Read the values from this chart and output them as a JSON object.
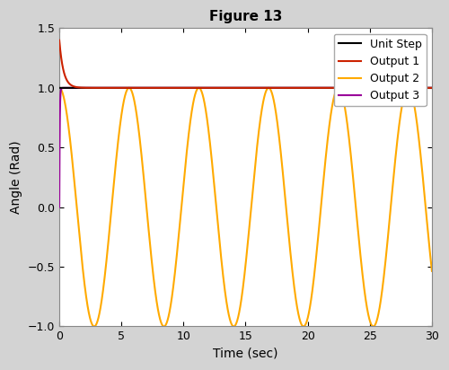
{
  "title": "Figure 13",
  "xlabel": "Time (sec)",
  "ylabel": "Angle (Rad)",
  "xlim": [
    0,
    30
  ],
  "ylim": [
    -1,
    1.5
  ],
  "xticks": [
    0,
    5,
    10,
    15,
    20,
    25,
    30
  ],
  "yticks": [
    -1,
    -0.5,
    0,
    0.5,
    1,
    1.5
  ],
  "unit_step_color": "#000000",
  "output1_color": "#cc2200",
  "output2_color": "#ffaa00",
  "output3_color": "#990099",
  "legend_labels": [
    "Unit Step",
    "Output 1",
    "Output 2",
    "Output 3"
  ],
  "t_max": 30,
  "n_points": 5000,
  "output2_amplitude": 1.0,
  "output2_frequency": 0.178,
  "title_fontsize": 11,
  "label_fontsize": 10,
  "legend_fontsize": 9,
  "line_width": 1.5,
  "background_color": "#ffffff",
  "output1_wn": 3.0,
  "output1_zeta": 1.2,
  "output3_decay": 30.0
}
